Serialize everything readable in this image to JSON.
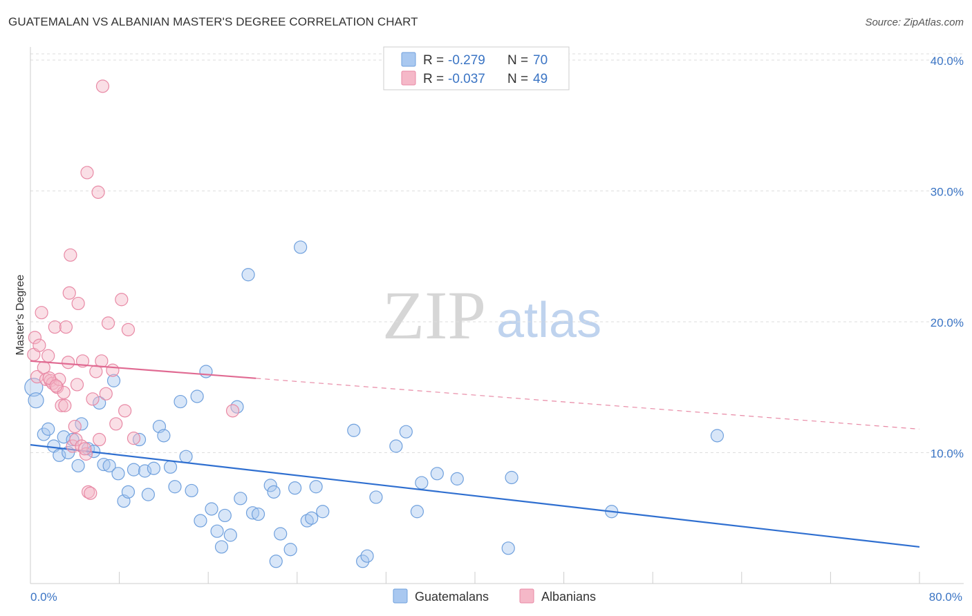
{
  "header": {
    "title": "GUATEMALAN VS ALBANIAN MASTER'S DEGREE CORRELATION CHART",
    "source": "Source: ZipAtlas.com"
  },
  "watermark": {
    "zip": "ZIP",
    "atlas": "atlas"
  },
  "legend": {
    "r_label": "R =",
    "n_label": "N =",
    "rows": [
      {
        "r": "-0.279",
        "n": "70",
        "color": "#a9c8f0"
      },
      {
        "r": "-0.037",
        "n": "49",
        "color": "#f5b8c8"
      }
    ]
  },
  "bottom_legend": [
    {
      "label": "Guatemalans",
      "color": "#a9c8f0"
    },
    {
      "label": "Albanians",
      "color": "#f5b8c8"
    }
  ],
  "chart_data": {
    "type": "scatter",
    "title": "GUATEMALAN VS ALBANIAN MASTER'S DEGREE CORRELATION CHART",
    "xlabel": "",
    "ylabel": "Master's Degree",
    "xlim": [
      0,
      80
    ],
    "ylim": [
      0,
      41
    ],
    "x_tick_labels": [
      "0.0%",
      "80.0%"
    ],
    "y_ticks": [
      10,
      20,
      30,
      40
    ],
    "y_tick_labels": [
      "10.0%",
      "20.0%",
      "30.0%",
      "40.0%"
    ],
    "grid": true,
    "series": [
      {
        "name": "Guatemalans",
        "color": "#6fa0dd",
        "fill": "#a9c8f0",
        "trend": {
          "x0": 0,
          "y0": 10.6,
          "x1": 80,
          "y1": 2.8,
          "dashed_from": null
        },
        "points": [
          [
            0.3,
            15.0
          ],
          [
            0.5,
            14.0
          ],
          [
            1.2,
            11.4
          ],
          [
            1.6,
            11.8
          ],
          [
            2.1,
            10.5
          ],
          [
            2.6,
            9.8
          ],
          [
            3.0,
            11.2
          ],
          [
            3.4,
            10.0
          ],
          [
            3.8,
            11.0
          ],
          [
            4.3,
            9.0
          ],
          [
            4.6,
            12.2
          ],
          [
            5.2,
            10.3
          ],
          [
            5.7,
            10.1
          ],
          [
            6.2,
            13.8
          ],
          [
            6.6,
            9.1
          ],
          [
            7.1,
            9.0
          ],
          [
            7.5,
            15.5
          ],
          [
            7.9,
            8.4
          ],
          [
            8.4,
            6.3
          ],
          [
            8.8,
            7.0
          ],
          [
            9.3,
            8.7
          ],
          [
            9.8,
            11.0
          ],
          [
            10.3,
            8.6
          ],
          [
            10.6,
            6.8
          ],
          [
            11.1,
            8.8
          ],
          [
            11.6,
            12.0
          ],
          [
            12.0,
            11.3
          ],
          [
            12.6,
            8.9
          ],
          [
            13.0,
            7.4
          ],
          [
            13.5,
            13.9
          ],
          [
            14.0,
            9.7
          ],
          [
            14.5,
            7.1
          ],
          [
            15.0,
            14.3
          ],
          [
            15.3,
            4.8
          ],
          [
            15.8,
            16.2
          ],
          [
            16.3,
            5.7
          ],
          [
            16.8,
            4.0
          ],
          [
            17.2,
            2.8
          ],
          [
            17.5,
            5.2
          ],
          [
            18.0,
            3.7
          ],
          [
            18.6,
            13.5
          ],
          [
            18.9,
            6.5
          ],
          [
            19.6,
            23.6
          ],
          [
            20.0,
            5.4
          ],
          [
            20.5,
            5.3
          ],
          [
            21.6,
            7.5
          ],
          [
            21.9,
            7.0
          ],
          [
            22.1,
            1.7
          ],
          [
            22.5,
            3.8
          ],
          [
            23.4,
            2.6
          ],
          [
            23.8,
            7.3
          ],
          [
            24.3,
            25.7
          ],
          [
            24.9,
            4.8
          ],
          [
            25.3,
            5.0
          ],
          [
            25.7,
            7.4
          ],
          [
            26.3,
            5.5
          ],
          [
            29.1,
            11.7
          ],
          [
            29.9,
            1.7
          ],
          [
            30.3,
            2.1
          ],
          [
            31.1,
            6.6
          ],
          [
            32.9,
            10.5
          ],
          [
            33.8,
            11.6
          ],
          [
            34.8,
            5.5
          ],
          [
            35.2,
            7.7
          ],
          [
            36.6,
            8.4
          ],
          [
            38.4,
            8.0
          ],
          [
            43.0,
            2.7
          ],
          [
            43.3,
            8.1
          ],
          [
            52.3,
            5.5
          ],
          [
            61.8,
            11.3
          ]
        ]
      },
      {
        "name": "Albanians",
        "color": "#e889a5",
        "fill": "#f5b8c8",
        "trend": {
          "x0": 0,
          "y0": 17.0,
          "x1": 80,
          "y1": 11.8,
          "dashed_from": 20.3
        },
        "points": [
          [
            0.3,
            17.5
          ],
          [
            0.4,
            18.8
          ],
          [
            0.6,
            15.8
          ],
          [
            0.8,
            18.2
          ],
          [
            1.0,
            20.7
          ],
          [
            1.2,
            16.5
          ],
          [
            1.4,
            15.6
          ],
          [
            1.6,
            17.4
          ],
          [
            1.8,
            15.5
          ],
          [
            2.0,
            15.3
          ],
          [
            2.2,
            19.6
          ],
          [
            2.4,
            15.0
          ],
          [
            2.6,
            15.6
          ],
          [
            2.8,
            13.6
          ],
          [
            3.0,
            14.6
          ],
          [
            3.1,
            13.6
          ],
          [
            3.2,
            19.6
          ],
          [
            3.4,
            16.9
          ],
          [
            3.5,
            22.2
          ],
          [
            3.6,
            25.1
          ],
          [
            3.8,
            10.5
          ],
          [
            4.0,
            12.0
          ],
          [
            4.1,
            11.0
          ],
          [
            4.2,
            15.2
          ],
          [
            4.3,
            21.4
          ],
          [
            4.6,
            10.5
          ],
          [
            4.7,
            17.0
          ],
          [
            5.0,
            9.9
          ],
          [
            5.1,
            31.4
          ],
          [
            5.2,
            7.0
          ],
          [
            5.4,
            6.9
          ],
          [
            5.6,
            14.1
          ],
          [
            5.9,
            16.2
          ],
          [
            6.1,
            29.9
          ],
          [
            6.2,
            11.0
          ],
          [
            6.4,
            17.0
          ],
          [
            6.5,
            38.0
          ],
          [
            6.8,
            14.5
          ],
          [
            7.0,
            19.9
          ],
          [
            7.4,
            16.3
          ],
          [
            7.7,
            12.2
          ],
          [
            8.2,
            21.7
          ],
          [
            8.5,
            13.2
          ],
          [
            8.8,
            19.4
          ],
          [
            9.3,
            11.1
          ],
          [
            18.2,
            13.2
          ],
          [
            1.7,
            15.7
          ],
          [
            2.3,
            15.1
          ],
          [
            4.9,
            10.3
          ]
        ]
      }
    ]
  }
}
